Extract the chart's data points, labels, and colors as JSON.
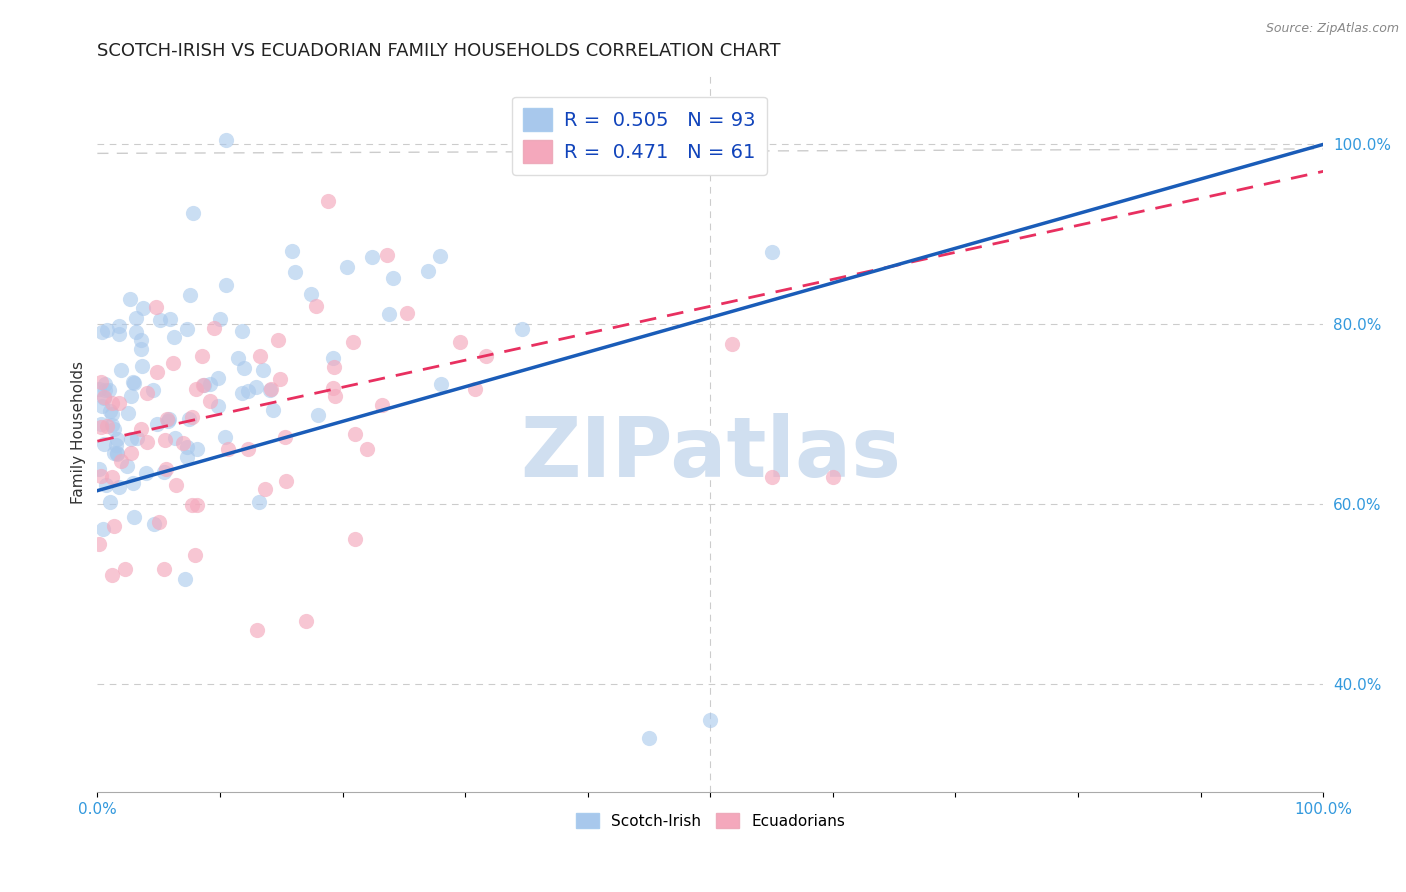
{
  "title": "SCOTCH-IRISH VS ECUADORIAN FAMILY HOUSEHOLDS CORRELATION CHART",
  "source_text": "Source: ZipAtlas.com",
  "ylabel": "Family Households",
  "xlim": [
    0.0,
    1.0
  ],
  "ylim": [
    0.28,
    1.08
  ],
  "ytick_positions": [
    0.4,
    0.6,
    0.8,
    1.0
  ],
  "yticklabels": [
    "40.0%",
    "60.0%",
    "80.0%",
    "100.0%"
  ],
  "blue_R": 0.505,
  "blue_N": 93,
  "pink_R": 0.471,
  "pink_N": 61,
  "blue_color": "#A8C8EC",
  "pink_color": "#F4A8BC",
  "blue_line_color": "#1A5CB8",
  "pink_line_color": "#E83060",
  "watermark_color": "#D0DFF0",
  "background_color": "#FFFFFF",
  "grid_color": "#CCCCCC",
  "legend_label_blue": "Scotch-Irish",
  "legend_label_pink": "Ecuadorians",
  "blue_line_intercept": 0.615,
  "blue_line_slope": 0.385,
  "pink_line_intercept": 0.67,
  "pink_line_slope": 0.3
}
